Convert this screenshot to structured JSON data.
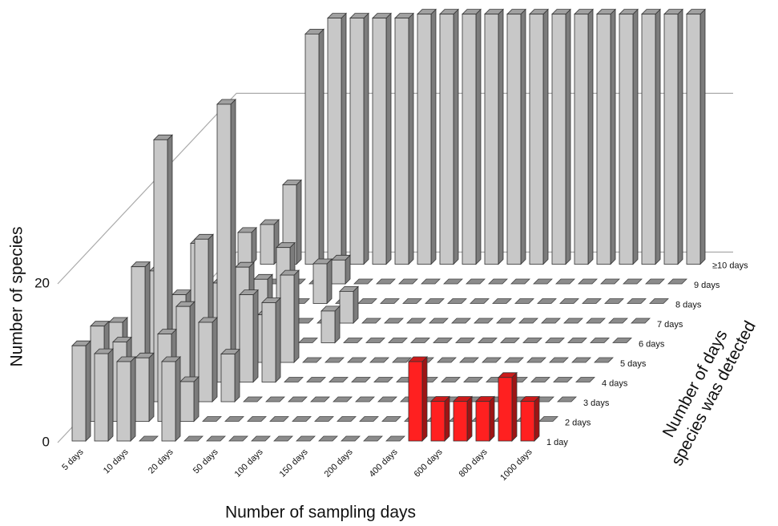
{
  "chart_data": {
    "type": "bar3d",
    "x_label": "Number of sampling days",
    "y_label": "Number of species",
    "z_label": [
      "Number of days",
      "species was detected"
    ],
    "categories": [
      "5 days",
      null,
      "10 days",
      null,
      "20 days",
      null,
      "50 days",
      null,
      "100 days",
      null,
      "150 days",
      null,
      "200 days",
      null,
      "400 days",
      null,
      "600 days",
      null,
      "800 days",
      null,
      "1000 days"
    ],
    "ylim": [
      0,
      40
    ],
    "yticks": [
      0,
      20
    ],
    "grid": true,
    "series": [
      {
        "name": "1 day",
        "color": "#c8c8c8",
        "colors": [
          "#c8c8c8",
          "#c8c8c8",
          "#c8c8c8",
          "#c8c8c8",
          "#c8c8c8",
          "#c8c8c8",
          "#c8c8c8",
          "#c8c8c8",
          "#c8c8c8",
          "#c8c8c8",
          "#c8c8c8",
          "#c8c8c8",
          "#c8c8c8",
          "#c8c8c8",
          "#c8c8c8",
          "#ff2020",
          "#ff2020",
          "#ff2020",
          "#ff2020",
          "#ff2020",
          "#ff2020"
        ],
        "values": [
          12,
          11,
          10,
          0,
          10,
          0,
          0,
          0,
          0,
          0,
          0,
          0,
          0,
          0,
          0,
          10,
          5,
          5,
          5,
          8,
          5
        ]
      },
      {
        "name": "2 days",
        "color": "#c8c8c8",
        "values": [
          12,
          10,
          8,
          11,
          5,
          0,
          0,
          0,
          0,
          0,
          0,
          0,
          0,
          0,
          0,
          0,
          0,
          0,
          0,
          0,
          0
        ]
      },
      {
        "name": "3 days",
        "color": "#c8c8c8",
        "values": [
          10,
          17,
          33,
          12,
          10,
          6,
          0,
          0,
          0,
          0,
          0,
          0,
          0,
          0,
          0,
          0,
          0,
          0,
          0,
          0,
          0
        ]
      },
      {
        "name": "4 days",
        "color": "#c8c8c8",
        "values": [
          0,
          14,
          11,
          18,
          35,
          11,
          10,
          0,
          0,
          0,
          0,
          0,
          0,
          0,
          0,
          0,
          0,
          0,
          0,
          0,
          0
        ]
      },
      {
        "name": "5 days",
        "color": "#c8c8c8",
        "values": [
          0,
          0,
          15,
          10,
          12,
          6,
          11,
          0,
          0,
          0,
          0,
          0,
          0,
          0,
          0,
          0,
          0,
          0,
          0,
          0,
          0
        ]
      },
      {
        "name": "6 days",
        "color": "#c8c8c8",
        "values": [
          0,
          0,
          0,
          0,
          8,
          12,
          0,
          4,
          0,
          0,
          0,
          0,
          0,
          0,
          0,
          0,
          0,
          0,
          0,
          0,
          0
        ]
      },
      {
        "name": "7 days",
        "color": "#c8c8c8",
        "values": [
          0,
          0,
          0,
          0,
          0,
          0,
          0,
          4,
          0,
          0,
          0,
          0,
          0,
          0,
          0,
          0,
          0,
          0,
          0,
          0,
          0
        ]
      },
      {
        "name": "8 days",
        "color": "#c8c8c8",
        "values": [
          0,
          0,
          0,
          0,
          0,
          5,
          0,
          0,
          0,
          0,
          0,
          0,
          0,
          0,
          0,
          0,
          0,
          0,
          0,
          0,
          0
        ]
      },
      {
        "name": "9 days",
        "color": "#c8c8c8",
        "values": [
          0,
          0,
          0,
          0,
          0,
          3,
          0,
          0,
          0,
          0,
          0,
          0,
          0,
          0,
          0,
          0,
          0,
          0,
          0,
          0,
          0
        ]
      },
      {
        "name": "≥10 days",
        "color": "#c8c8c8",
        "values": [
          4,
          5,
          10,
          29,
          31,
          31,
          31,
          31,
          31.5,
          31.5,
          31.5,
          31.5,
          31.5,
          31.5,
          31.5,
          31.5,
          31.5,
          31.5,
          31.5,
          31.5,
          31.5
        ]
      }
    ]
  }
}
